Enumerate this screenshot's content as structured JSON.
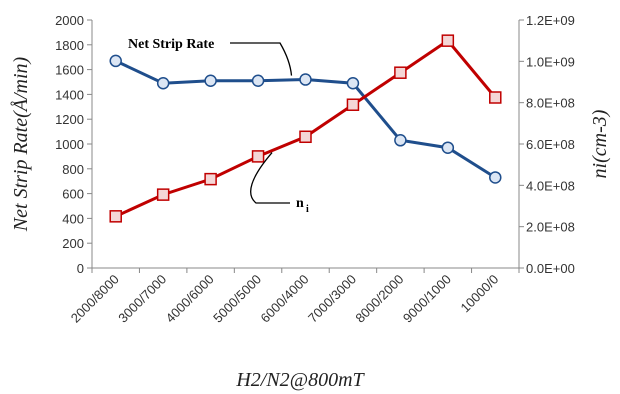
{
  "chart_data": {
    "type": "line",
    "title": "",
    "categories": [
      "2000/8000",
      "3000/7000",
      "4000/6000",
      "5000/5000",
      "6000/4000",
      "7000/3000",
      "8000/2000",
      "9000/1000",
      "10000/0"
    ],
    "xlabel": "H2/N2@800mT",
    "ylabel_left": "Net Strip Rate(Å/min)",
    "ylabel_right": "ni(cm-3)",
    "y_left": {
      "range": [
        0,
        2000
      ],
      "ticks": [
        "0",
        "200",
        "400",
        "600",
        "800",
        "1000",
        "1200",
        "1400",
        "1600",
        "1800",
        "2000"
      ]
    },
    "y_right": {
      "range": [
        0,
        1200000000
      ],
      "ticks": [
        "0.0E+00",
        "2.0E+08",
        "4.0E+08",
        "6.0E+08",
        "8.0E+08",
        "1.0E+09",
        "1.2E+09"
      ]
    },
    "grid": false,
    "series": [
      {
        "name": "Net Strip Rate",
        "axis": "left",
        "color": "#1f4e8c",
        "marker": "circle",
        "values": [
          1670,
          1490,
          1510,
          1510,
          1520,
          1490,
          1030,
          970,
          730
        ]
      },
      {
        "name": "ni",
        "axis": "right",
        "color": "#c00000",
        "marker": "square",
        "values": [
          250000000,
          355000000,
          430000000,
          540000000,
          635000000,
          790000000,
          945000000,
          1100000000,
          825000000
        ]
      }
    ],
    "annotations": [
      {
        "text": "Net Strip Rate",
        "series": 0
      },
      {
        "text": "n",
        "subscript": "i",
        "series": 1
      }
    ]
  }
}
